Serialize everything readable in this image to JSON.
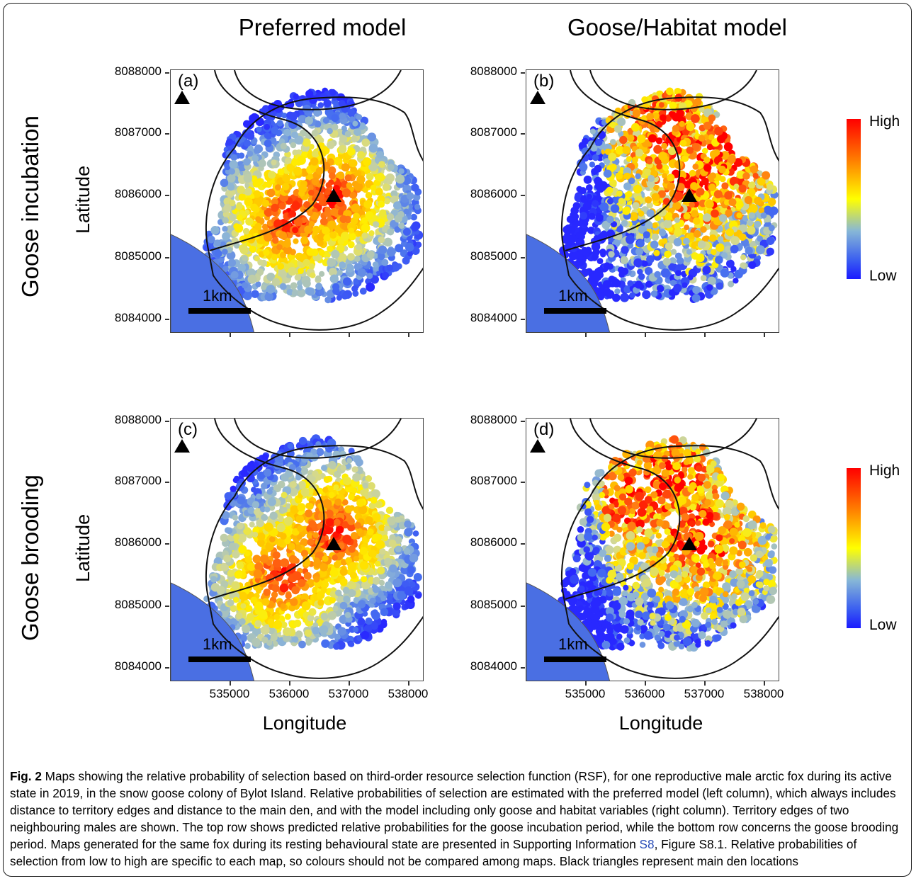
{
  "column_titles": [
    "Preferred model",
    "Goose/Habitat model"
  ],
  "row_titles": [
    "Goose incubation",
    "Goose brooding"
  ],
  "y_axis_label": "Latitude",
  "x_axis_label": "Longitude",
  "y_ticks": [
    "8088000",
    "8087000",
    "8086000",
    "8085000",
    "8084000"
  ],
  "x_ticks": [
    "535000",
    "536000",
    "537000",
    "538000"
  ],
  "panels": [
    {
      "label": "(a)",
      "scale": "1km"
    },
    {
      "label": "(b)",
      "scale": "1km"
    },
    {
      "label": "(c)",
      "scale": "1km"
    },
    {
      "label": "(d)",
      "scale": "1km"
    }
  ],
  "legend": {
    "high": "High",
    "low": "Low"
  },
  "colors": {
    "water": "#4a6fe3",
    "high": "#ff0000",
    "low": "#1a1aff",
    "mid": "#ffff00"
  },
  "caption": {
    "fig_label": "Fig. 2",
    "text_1": " Maps showing the relative probability of selection based on third-order resource selection function (RSF), for one reproductive male arctic fox during its active state in 2019, in the snow goose colony of Bylot Island. Relative probabilities of selection are estimated with the preferred model (left column), which always includes distance to territory edges and distance to the main den, and with the model including only goose and habitat variables (right column). Territory edges of two neighbouring males are shown. The top row shows predicted relative probabilities for the goose incubation period, while the bottom row concerns the goose brooding period. Maps generated for the same fox during its resting behavioural state are presented in Supporting Information ",
    "link": "S8",
    "text_2": ", Figure S8.1. Relative probabilities of selection from low to high are specific to each map, so colours should not be compared among maps. Black triangles represent main den locations"
  }
}
